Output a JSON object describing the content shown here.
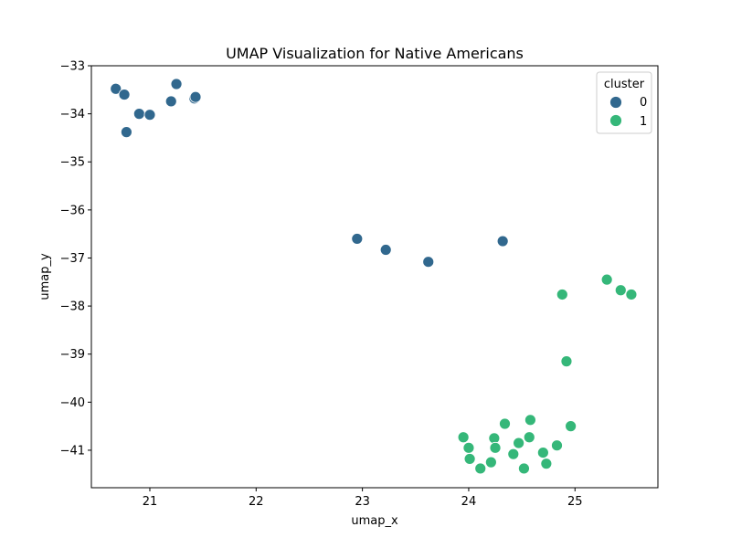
{
  "chart_data": {
    "type": "scatter",
    "title": "UMAP Visualization for Native Americans",
    "xlabel": "umap_x",
    "ylabel": "umap_y",
    "xlim": [
      20.45,
      25.78
    ],
    "ylim": [
      -41.78,
      -33.0
    ],
    "xticks": [
      21,
      22,
      23,
      24,
      25
    ],
    "xtick_labels": [
      "21",
      "22",
      "23",
      "24",
      "25"
    ],
    "yticks": [
      -33,
      -34,
      -35,
      -36,
      -37,
      -38,
      -39,
      -40,
      -41
    ],
    "ytick_labels": [
      "−33",
      "−34",
      "−35",
      "−36",
      "−37",
      "−38",
      "−39",
      "−40",
      "−41"
    ],
    "grid": false,
    "legend": {
      "title": "cluster",
      "placement": "top-right"
    },
    "series": [
      {
        "name": "0",
        "color": "#31688e",
        "points": [
          [
            20.68,
            -33.48
          ],
          [
            20.76,
            -33.6
          ],
          [
            20.78,
            -34.38
          ],
          [
            20.9,
            -34.0
          ],
          [
            21.0,
            -34.02
          ],
          [
            21.2,
            -33.74
          ],
          [
            21.25,
            -33.38
          ],
          [
            21.42,
            -33.68
          ],
          [
            21.43,
            -33.65
          ],
          [
            22.95,
            -36.6
          ],
          [
            23.22,
            -36.83
          ],
          [
            23.62,
            -37.08
          ],
          [
            24.32,
            -36.65
          ]
        ]
      },
      {
        "name": "1",
        "color": "#35b779",
        "points": [
          [
            24.88,
            -37.76
          ],
          [
            25.3,
            -37.45
          ],
          [
            25.43,
            -37.67
          ],
          [
            25.53,
            -37.76
          ],
          [
            24.92,
            -39.15
          ],
          [
            23.95,
            -40.73
          ],
          [
            24.0,
            -40.95
          ],
          [
            24.01,
            -41.18
          ],
          [
            24.11,
            -41.38
          ],
          [
            24.21,
            -41.25
          ],
          [
            24.24,
            -40.75
          ],
          [
            24.25,
            -40.95
          ],
          [
            24.34,
            -40.45
          ],
          [
            24.42,
            -41.08
          ],
          [
            24.47,
            -40.85
          ],
          [
            24.52,
            -41.38
          ],
          [
            24.57,
            -40.73
          ],
          [
            24.58,
            -40.37
          ],
          [
            24.7,
            -41.05
          ],
          [
            24.73,
            -41.28
          ],
          [
            24.83,
            -40.9
          ],
          [
            24.96,
            -40.5
          ]
        ]
      }
    ]
  }
}
